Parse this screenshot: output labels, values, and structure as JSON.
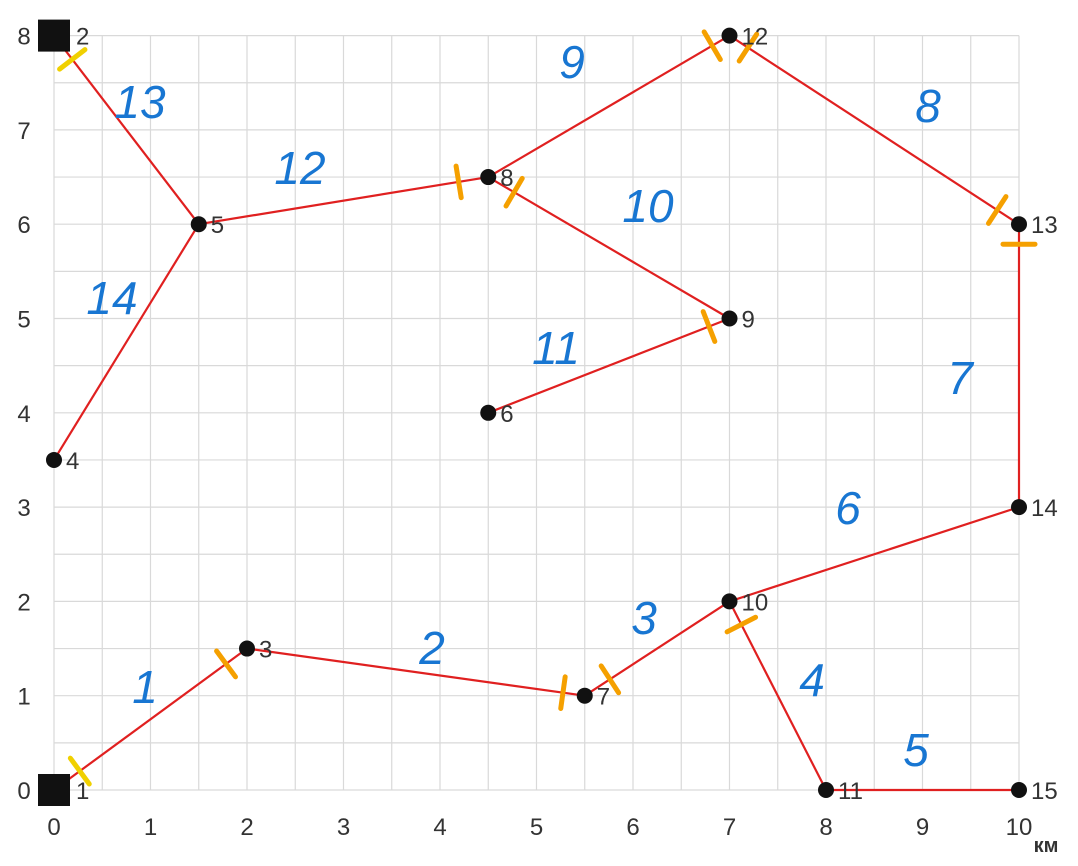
{
  "x_ticks": [
    "0",
    "1",
    "2",
    "3",
    "4",
    "5",
    "6",
    "7",
    "8",
    "9",
    "10"
  ],
  "y_ticks": [
    "0",
    "1",
    "2",
    "3",
    "4",
    "5",
    "6",
    "7",
    "8"
  ],
  "x_unit": "км",
  "colors": {
    "grid": "#d9d9d9",
    "edge": "#e02020",
    "node": "#111111",
    "edge_label": "#1876d2",
    "tick_mark_orange": "#f5a000",
    "tick_mark_yellow": "#f0d000"
  },
  "nodes": [
    {
      "id": "1",
      "x": 0,
      "y": 0,
      "shape": "square"
    },
    {
      "id": "2",
      "x": 0,
      "y": 8,
      "shape": "square"
    },
    {
      "id": "3",
      "x": 2,
      "y": 1.5,
      "shape": "circle"
    },
    {
      "id": "4",
      "x": 0,
      "y": 3.5,
      "shape": "circle"
    },
    {
      "id": "5",
      "x": 1.5,
      "y": 6,
      "shape": "circle"
    },
    {
      "id": "6",
      "x": 4.5,
      "y": 4,
      "shape": "circle"
    },
    {
      "id": "7",
      "x": 5.5,
      "y": 1,
      "shape": "circle"
    },
    {
      "id": "8",
      "x": 4.5,
      "y": 6.5,
      "shape": "circle"
    },
    {
      "id": "9",
      "x": 7,
      "y": 5,
      "shape": "circle"
    },
    {
      "id": "10",
      "x": 7,
      "y": 2,
      "shape": "circle"
    },
    {
      "id": "11",
      "x": 8,
      "y": 0,
      "shape": "circle"
    },
    {
      "id": "12",
      "x": 7,
      "y": 8,
      "shape": "circle"
    },
    {
      "id": "13",
      "x": 10,
      "y": 6,
      "shape": "circle"
    },
    {
      "id": "14",
      "x": 10,
      "y": 3,
      "shape": "circle"
    },
    {
      "id": "15",
      "x": 10,
      "y": 0,
      "shape": "circle"
    }
  ],
  "edges": [
    {
      "label": "1",
      "from": "1",
      "to": "3"
    },
    {
      "label": "2",
      "from": "3",
      "to": "7"
    },
    {
      "label": "3",
      "from": "7",
      "to": "10"
    },
    {
      "label": "4",
      "from": "10",
      "to": "11"
    },
    {
      "label": "5",
      "from": "11",
      "to": "15"
    },
    {
      "label": "6",
      "from": "10",
      "to": "14"
    },
    {
      "label": "7",
      "from": "14",
      "to": "13"
    },
    {
      "label": "8",
      "from": "13",
      "to": "12"
    },
    {
      "label": "9",
      "from": "12",
      "to": "8"
    },
    {
      "label": "10",
      "from": "8",
      "to": "9"
    },
    {
      "label": "11",
      "from": "9",
      "to": "6"
    },
    {
      "label": "12",
      "from": "8",
      "to": "5"
    },
    {
      "label": "13",
      "from": "5",
      "to": "2"
    },
    {
      "label": "14",
      "from": "5",
      "to": "4"
    }
  ]
}
